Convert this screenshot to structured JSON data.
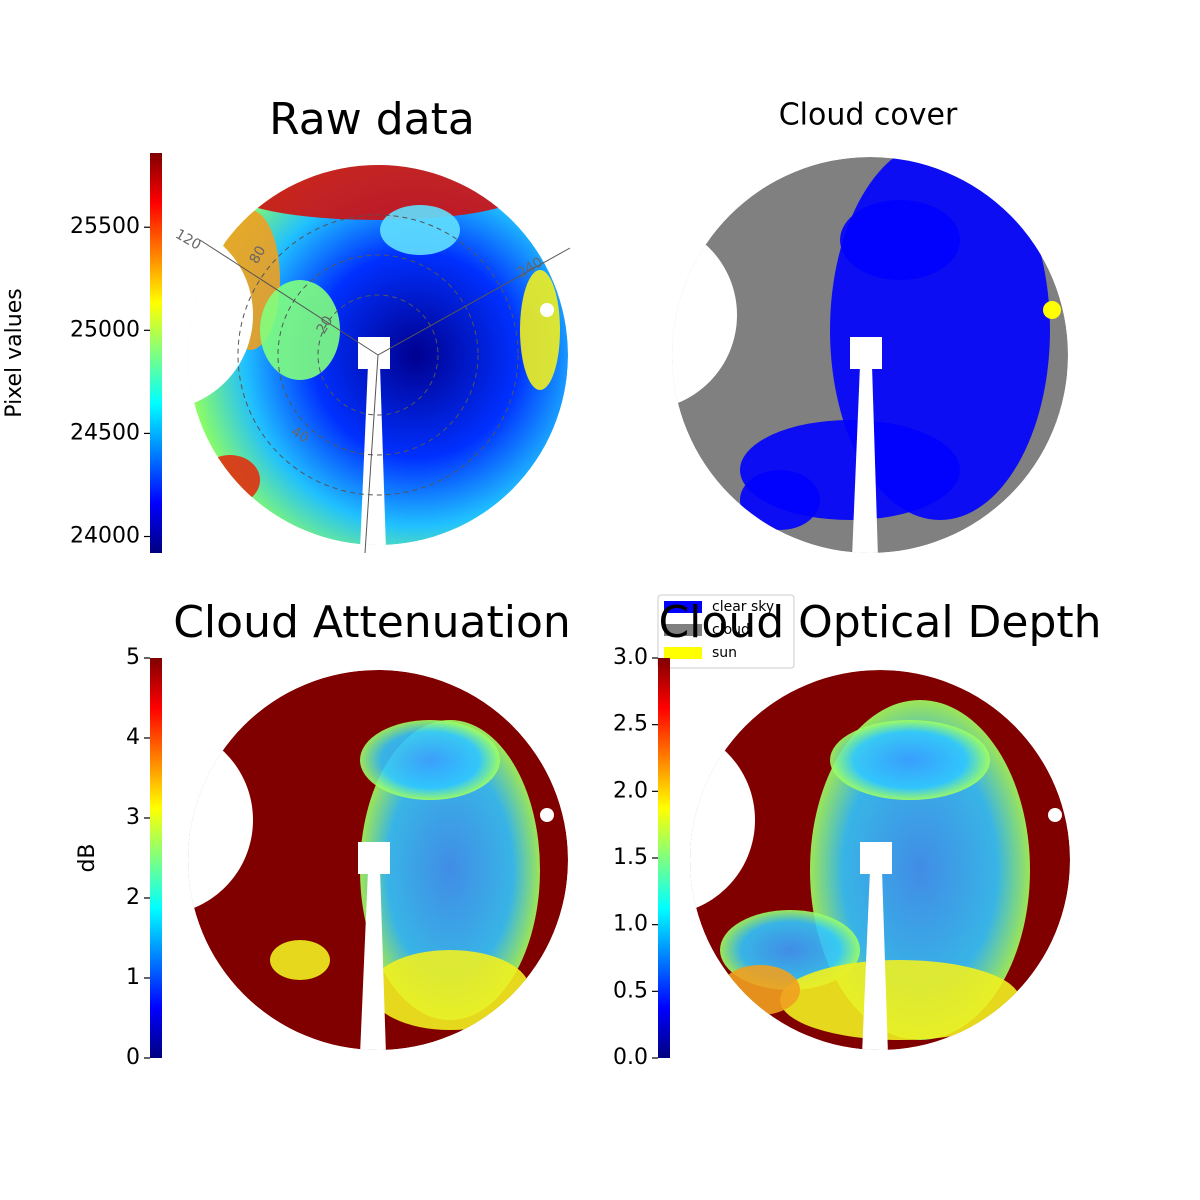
{
  "chart_data": [
    {
      "type": "image",
      "title": "Raw data",
      "colorbar": {
        "label": "Pixel values",
        "lim": [
          23920,
          25860
        ],
        "ticks": [
          24000,
          24500,
          25000,
          25500
        ]
      },
      "annotations": [
        "120",
        "240",
        "80",
        "20",
        "40"
      ]
    },
    {
      "type": "image",
      "title": "Cloud cover",
      "legend": {
        "labels": [
          "clear sky",
          "cloud",
          "sun"
        ],
        "colors": [
          "#0000ff",
          "#808080",
          "#ffff00"
        ]
      }
    },
    {
      "type": "image",
      "title": "Cloud Attenuation",
      "colorbar": {
        "label": "dB",
        "lim": [
          0,
          5
        ],
        "ticks": [
          0,
          1,
          2,
          3,
          4,
          5
        ]
      }
    },
    {
      "type": "image",
      "title": "Cloud Optical Depth",
      "colorbar": {
        "lim": [
          0,
          3
        ],
        "ticks": [
          {
            "value": 0,
            "label": "0.0"
          },
          0.5,
          {
            "value": 1,
            "label": "1.0"
          },
          1.5,
          {
            "value": 2,
            "label": "2.0"
          },
          2.5,
          {
            "value": 3,
            "label": "3.0"
          }
        ]
      }
    }
  ]
}
